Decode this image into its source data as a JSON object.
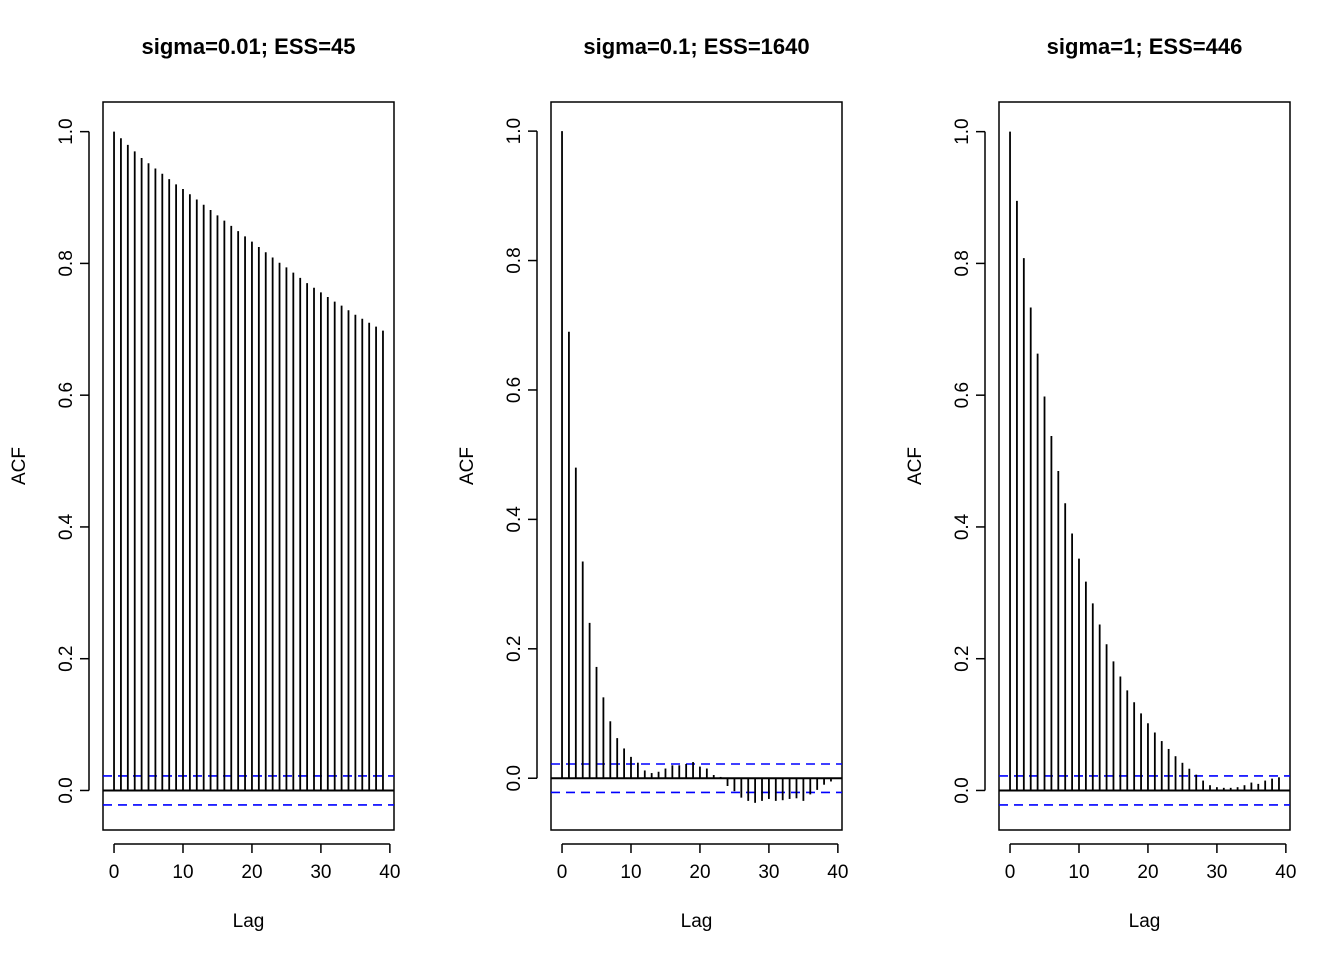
{
  "chart_data": [
    {
      "type": "bar",
      "title": "sigma=0.01; ESS=45",
      "xlabel": "Lag",
      "ylabel": "ACF",
      "xlim": [
        -1.6,
        40.6
      ],
      "ylim": [
        -0.06,
        1.045
      ],
      "xticks": [
        0,
        10,
        20,
        30,
        40
      ],
      "xtick_labels": [
        "0",
        "10",
        "20",
        "30",
        "40"
      ],
      "yticks": [
        0.0,
        0.2,
        0.4,
        0.6,
        0.8,
        1.0
      ],
      "ytick_labels": [
        "0.0",
        "0.2",
        "0.4",
        "0.6",
        "0.8",
        "1.0"
      ],
      "ci": 0.022,
      "lags": [
        0,
        1,
        2,
        3,
        4,
        5,
        6,
        7,
        8,
        9,
        10,
        11,
        12,
        13,
        14,
        15,
        16,
        17,
        18,
        19,
        20,
        21,
        22,
        23,
        24,
        25,
        26,
        27,
        28,
        29,
        30,
        31,
        32,
        33,
        34,
        35,
        36,
        37,
        38,
        39
      ],
      "values": [
        1.0,
        0.99,
        0.98,
        0.97,
        0.96,
        0.952,
        0.944,
        0.936,
        0.928,
        0.92,
        0.913,
        0.905,
        0.897,
        0.889,
        0.881,
        0.873,
        0.865,
        0.857,
        0.849,
        0.841,
        0.833,
        0.825,
        0.817,
        0.809,
        0.801,
        0.794,
        0.786,
        0.778,
        0.77,
        0.763,
        0.756,
        0.749,
        0.742,
        0.736,
        0.729,
        0.722,
        0.716,
        0.71,
        0.704,
        0.698
      ]
    },
    {
      "type": "bar",
      "title": "sigma=0.1; ESS=1640",
      "xlabel": "Lag",
      "ylabel": "ACF",
      "xlim": [
        -1.6,
        40.6
      ],
      "ylim": [
        -0.08,
        1.045
      ],
      "xticks": [
        0,
        10,
        20,
        30,
        40
      ],
      "xtick_labels": [
        "0",
        "10",
        "20",
        "30",
        "40"
      ],
      "yticks": [
        0.0,
        0.2,
        0.4,
        0.6,
        0.8,
        1.0
      ],
      "ytick_labels": [
        "0.0",
        "0.2",
        "0.4",
        "0.6",
        "0.8",
        "1.0"
      ],
      "ci": 0.022,
      "lags": [
        0,
        1,
        2,
        3,
        4,
        5,
        6,
        7,
        8,
        9,
        10,
        11,
        12,
        13,
        14,
        15,
        16,
        17,
        18,
        19,
        20,
        21,
        22,
        23,
        24,
        25,
        26,
        27,
        28,
        29,
        30,
        31,
        32,
        33,
        34,
        35,
        36,
        37,
        38,
        39
      ],
      "values": [
        1.0,
        0.69,
        0.48,
        0.335,
        0.24,
        0.172,
        0.125,
        0.088,
        0.062,
        0.046,
        0.033,
        0.024,
        0.012,
        0.008,
        0.01,
        0.015,
        0.02,
        0.02,
        0.022,
        0.025,
        0.018,
        0.015,
        0.005,
        0.002,
        -0.012,
        -0.02,
        -0.03,
        -0.035,
        -0.038,
        -0.035,
        -0.032,
        -0.035,
        -0.034,
        -0.032,
        -0.031,
        -0.035,
        -0.025,
        -0.018,
        -0.01,
        -0.005
      ]
    },
    {
      "type": "bar",
      "title": "sigma=1; ESS=446",
      "xlabel": "Lag",
      "ylabel": "ACF",
      "xlim": [
        -1.6,
        40.6
      ],
      "ylim": [
        -0.06,
        1.045
      ],
      "xticks": [
        0,
        10,
        20,
        30,
        40
      ],
      "xtick_labels": [
        "0",
        "10",
        "20",
        "30",
        "40"
      ],
      "yticks": [
        0.0,
        0.2,
        0.4,
        0.6,
        0.8,
        1.0
      ],
      "ytick_labels": [
        "0.0",
        "0.2",
        "0.4",
        "0.6",
        "0.8",
        "1.0"
      ],
      "ci": 0.022,
      "lags": [
        0,
        1,
        2,
        3,
        4,
        5,
        6,
        7,
        8,
        9,
        10,
        11,
        12,
        13,
        14,
        15,
        16,
        17,
        18,
        19,
        20,
        21,
        22,
        23,
        24,
        25,
        26,
        27,
        28,
        29,
        30,
        31,
        32,
        33,
        34,
        35,
        36,
        37,
        38,
        39
      ],
      "values": [
        1.0,
        0.895,
        0.808,
        0.733,
        0.663,
        0.598,
        0.538,
        0.485,
        0.436,
        0.39,
        0.352,
        0.317,
        0.284,
        0.252,
        0.222,
        0.196,
        0.173,
        0.152,
        0.134,
        0.117,
        0.102,
        0.088,
        0.075,
        0.063,
        0.052,
        0.042,
        0.033,
        0.024,
        0.015,
        0.008,
        0.005,
        0.004,
        0.004,
        0.005,
        0.008,
        0.012,
        0.01,
        0.015,
        0.018,
        0.02
      ]
    }
  ]
}
